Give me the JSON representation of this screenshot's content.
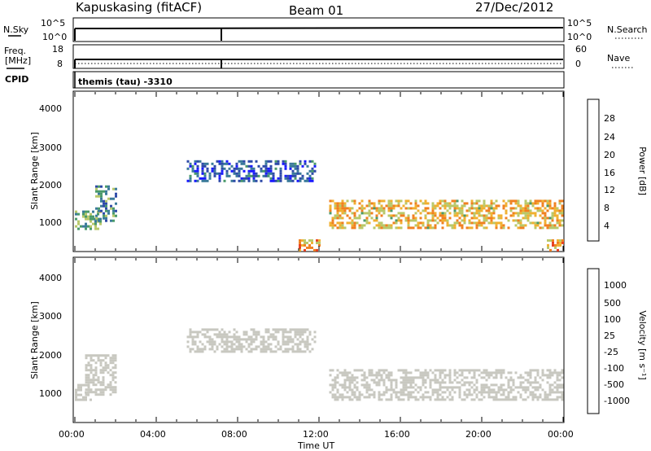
{
  "header": {
    "station": "Kapuskasing (fitACF)",
    "beam": "Beam 01",
    "date": "27/Dec/2012"
  },
  "sky_panel": {
    "left_label": "N.Sky",
    "right_label": "N.Search",
    "left_ticks": [
      "10^5",
      "10^0"
    ],
    "right_ticks": [
      "10^5",
      "10^0"
    ]
  },
  "freq_panel": {
    "left_label": "Freq.",
    "left_unit": "[MHz]",
    "right_label": "Nave",
    "left_ticks": [
      "18",
      "8"
    ],
    "right_ticks": [
      "60",
      "0"
    ]
  },
  "cpid": {
    "label": "CPID",
    "value": "themis (tau) -3310"
  },
  "xaxis": {
    "label": "Time UT",
    "ticks": [
      "00:00",
      "04:00",
      "08:00",
      "12:00",
      "16:00",
      "20:00",
      "00:00"
    ]
  },
  "power_panel": {
    "ylabel": "Slant Range [km]",
    "yticks": [
      "4000",
      "3000",
      "2000",
      "1000"
    ],
    "colorbar_label": "Power [dB]",
    "colorbar_ticks": [
      "28",
      "24",
      "20",
      "16",
      "12",
      "8",
      "4"
    ]
  },
  "velocity_panel": {
    "ylabel": "Slant Range [km]",
    "yticks": [
      "4000",
      "3000",
      "2000",
      "1000"
    ],
    "colorbar_label": "Velocity [m s⁻¹]",
    "colorbar_ticks": [
      "1000",
      "500",
      "100",
      "25",
      "-25",
      "-100",
      "-500",
      "-1000"
    ]
  },
  "colors": {
    "power_scale": [
      "#1a1aff",
      "#2e4aa8",
      "#3a7a9a",
      "#4a9a6a",
      "#b8c86a",
      "#f0b030",
      "#f08020",
      "#e84020",
      "#e01010"
    ],
    "velocity_scale": [
      "#2a3aa8",
      "#3a6ab0",
      "#5aa070",
      "#66cc44",
      "#c8c8c0",
      "#c8c8c0",
      "#f0b030",
      "#f08020",
      "#e84020",
      "#e01010"
    ]
  },
  "chart_data": [
    {
      "type": "heatmap",
      "title": "Power [dB]",
      "xlabel": "Time UT",
      "ylabel": "Slant Range [km]",
      "xlim": [
        "00:00",
        "24:00"
      ],
      "ylim": [
        180,
        4600
      ],
      "zlim": [
        0,
        30
      ],
      "regions": [
        {
          "t_start": 0.0,
          "t_end": 1.3,
          "range_start": 800,
          "range_end": 1300,
          "power_db": 12
        },
        {
          "t_start": 1.0,
          "t_end": 2.0,
          "range_start": 1000,
          "range_end": 2000,
          "power_db": 10
        },
        {
          "t_start": 5.5,
          "t_end": 11.8,
          "range_start": 2100,
          "range_end": 2700,
          "power_db": 6
        },
        {
          "t_start": 12.5,
          "t_end": 24.0,
          "range_start": 800,
          "range_end": 1600,
          "power_db": 18
        },
        {
          "t_start": 11.0,
          "t_end": 12.0,
          "range_start": 200,
          "range_end": 500,
          "power_db": 20
        },
        {
          "t_start": 23.2,
          "t_end": 24.0,
          "range_start": 200,
          "range_end": 500,
          "power_db": 20
        }
      ]
    },
    {
      "type": "heatmap",
      "title": "Velocity [m s⁻¹]",
      "xlabel": "Time UT",
      "ylabel": "Slant Range [km]",
      "xlim": [
        "00:00",
        "24:00"
      ],
      "ylim": [
        180,
        4600
      ],
      "zlim": [
        -1000,
        1000
      ],
      "regions": [
        {
          "t_start": 0.0,
          "t_end": 0.8,
          "range_start": 800,
          "range_end": 1200,
          "velocity": 0
        },
        {
          "t_start": 0.5,
          "t_end": 2.0,
          "range_start": 900,
          "range_end": 2000,
          "velocity": -100
        },
        {
          "t_start": 5.5,
          "t_end": 11.8,
          "range_start": 2100,
          "range_end": 2700,
          "velocity": 0
        },
        {
          "t_start": 12.5,
          "t_end": 24.0,
          "range_start": 800,
          "range_end": 1600,
          "velocity": 0
        }
      ]
    }
  ]
}
